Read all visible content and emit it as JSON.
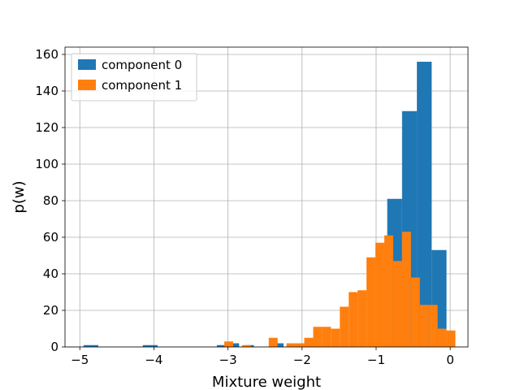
{
  "chart_data": {
    "type": "histogram",
    "title": "",
    "xlabel": "Mixture weight",
    "ylabel": "p(w)",
    "xlim": [
      -5.2,
      0.24
    ],
    "ylim": [
      0,
      164
    ],
    "xticks": [
      -5,
      -4,
      -3,
      -2,
      -1,
      0
    ],
    "xtick_labels": [
      "−5",
      "−4",
      "−3",
      "−2",
      "−1",
      "0"
    ],
    "yticks": [
      0,
      20,
      40,
      60,
      80,
      100,
      120,
      140,
      160
    ],
    "grid": true,
    "legend_position": "top-left",
    "series": [
      {
        "name": "component 0",
        "color": "#1f77b4",
        "bins": [
          {
            "x0": -4.95,
            "x1": -4.75,
            "value": 1
          },
          {
            "x0": -4.15,
            "x1": -3.95,
            "value": 1
          },
          {
            "x0": -3.15,
            "x1": -2.95,
            "value": 1
          },
          {
            "x0": -2.95,
            "x1": -2.85,
            "value": 2
          },
          {
            "x0": -2.75,
            "x1": -2.65,
            "value": 1
          },
          {
            "x0": -2.35,
            "x1": -2.25,
            "value": 2
          },
          {
            "x0": -0.85,
            "x1": -0.65,
            "value": 81
          },
          {
            "x0": -0.65,
            "x1": -0.45,
            "value": 129
          },
          {
            "x0": -0.45,
            "x1": -0.25,
            "value": 156
          },
          {
            "x0": -0.25,
            "x1": -0.05,
            "value": 53
          }
        ]
      },
      {
        "name": "component 1",
        "color": "#ff7f0e",
        "bins": [
          {
            "x0": -3.05,
            "x1": -2.93,
            "value": 3
          },
          {
            "x0": -2.81,
            "x1": -2.69,
            "value": 1
          },
          {
            "x0": -2.45,
            "x1": -2.33,
            "value": 5
          },
          {
            "x0": -2.21,
            "x1": -2.09,
            "value": 2
          },
          {
            "x0": -2.09,
            "x1": -1.97,
            "value": 2
          },
          {
            "x0": -1.97,
            "x1": -1.85,
            "value": 5
          },
          {
            "x0": -1.85,
            "x1": -1.73,
            "value": 11
          },
          {
            "x0": -1.73,
            "x1": -1.61,
            "value": 11
          },
          {
            "x0": -1.61,
            "x1": -1.49,
            "value": 10
          },
          {
            "x0": -1.49,
            "x1": -1.37,
            "value": 22
          },
          {
            "x0": -1.37,
            "x1": -1.25,
            "value": 30
          },
          {
            "x0": -1.25,
            "x1": -1.13,
            "value": 31
          },
          {
            "x0": -1.13,
            "x1": -1.01,
            "value": 49
          },
          {
            "x0": -1.01,
            "x1": -0.89,
            "value": 57
          },
          {
            "x0": -0.89,
            "x1": -0.77,
            "value": 61
          },
          {
            "x0": -0.77,
            "x1": -0.65,
            "value": 47
          },
          {
            "x0": -0.65,
            "x1": -0.53,
            "value": 63
          },
          {
            "x0": -0.53,
            "x1": -0.41,
            "value": 38
          },
          {
            "x0": -0.41,
            "x1": -0.29,
            "value": 23
          },
          {
            "x0": -0.29,
            "x1": -0.17,
            "value": 23
          },
          {
            "x0": -0.17,
            "x1": -0.05,
            "value": 10
          },
          {
            "x0": -0.05,
            "x1": 0.07,
            "value": 9
          }
        ]
      }
    ]
  }
}
